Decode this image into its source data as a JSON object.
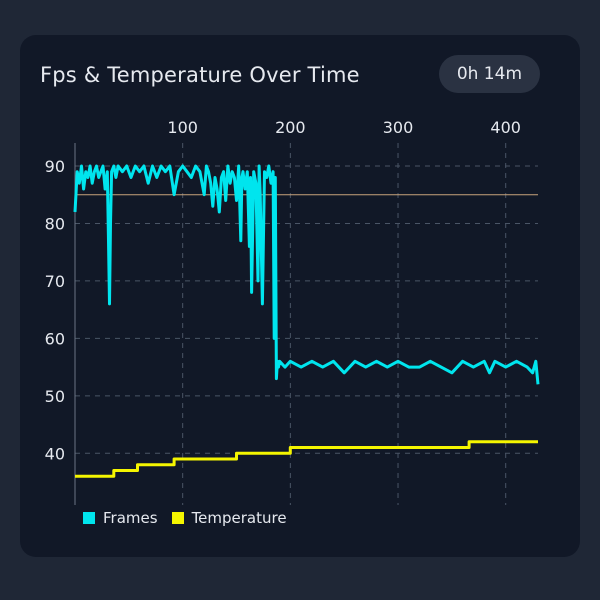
{
  "header": {
    "title": "Fps & Temperature Over Time",
    "duration": "0h 14m"
  },
  "colors": {
    "frames": "#00e5ee",
    "temperature": "#f5f500",
    "target_line": "#c8a37c",
    "grid": "#4a5566",
    "axis": "#6b7585"
  },
  "legend": [
    {
      "label": "Frames",
      "color": "#00e5ee"
    },
    {
      "label": "Temperature",
      "color": "#f5f500"
    }
  ],
  "chart_data": {
    "type": "line",
    "x_ticks": [
      100,
      200,
      300,
      400
    ],
    "y_ticks": [
      40,
      50,
      60,
      70,
      80,
      90
    ],
    "xlim": [
      0,
      430
    ],
    "ylim": [
      31,
      94
    ],
    "x_axis_position": "top",
    "grid": true,
    "legend_position": "bottom-left",
    "reference_line": {
      "y": 85
    },
    "series": [
      {
        "name": "Frames",
        "x": [
          0,
          2,
          4,
          6,
          8,
          10,
          12,
          14,
          16,
          18,
          20,
          22,
          24,
          26,
          28,
          30,
          31,
          32,
          33,
          34,
          36,
          38,
          40,
          44,
          48,
          52,
          56,
          60,
          64,
          68,
          72,
          76,
          80,
          84,
          88,
          92,
          96,
          100,
          104,
          108,
          112,
          116,
          120,
          122,
          124,
          126,
          128,
          130,
          132,
          134,
          136,
          138,
          140,
          142,
          144,
          146,
          148,
          150,
          152,
          154,
          155,
          156,
          158,
          160,
          162,
          163,
          164,
          166,
          168,
          170,
          171,
          172,
          174,
          176,
          178,
          180,
          182,
          184,
          185,
          186,
          187,
          188,
          189,
          190,
          195,
          200,
          210,
          220,
          230,
          240,
          250,
          260,
          270,
          280,
          290,
          300,
          310,
          320,
          330,
          340,
          350,
          360,
          370,
          380,
          385,
          390,
          400,
          410,
          420,
          425,
          428,
          430
        ],
        "values": [
          82,
          89,
          87,
          90,
          86,
          89,
          88,
          90,
          87,
          89,
          90,
          88,
          89,
          90,
          86,
          89,
          78,
          66,
          80,
          89,
          90,
          88,
          90,
          89,
          90,
          88,
          90,
          89,
          90,
          87,
          90,
          88,
          90,
          89,
          90,
          85,
          89,
          90,
          89,
          88,
          90,
          89,
          85,
          90,
          89,
          87,
          83,
          88,
          86,
          82,
          88,
          89,
          84,
          90,
          87,
          89,
          88,
          84,
          90,
          77,
          88,
          89,
          86,
          89,
          76,
          88,
          68,
          89,
          87,
          70,
          90,
          85,
          66,
          89,
          88,
          90,
          87,
          89,
          60,
          88,
          53,
          56,
          55,
          56,
          55,
          56,
          55,
          56,
          55,
          56,
          54,
          56,
          55,
          56,
          55,
          56,
          55,
          55,
          56,
          55,
          54,
          56,
          55,
          56,
          54,
          56,
          55,
          56,
          55,
          54,
          56,
          52
        ]
      },
      {
        "name": "Temperature",
        "x": [
          0,
          36,
          36,
          58,
          58,
          92,
          92,
          150,
          150,
          200,
          200,
          366,
          366,
          430
        ],
        "values": [
          36,
          36,
          37,
          37,
          38,
          38,
          39,
          39,
          40,
          40,
          41,
          41,
          42,
          42
        ]
      }
    ]
  }
}
